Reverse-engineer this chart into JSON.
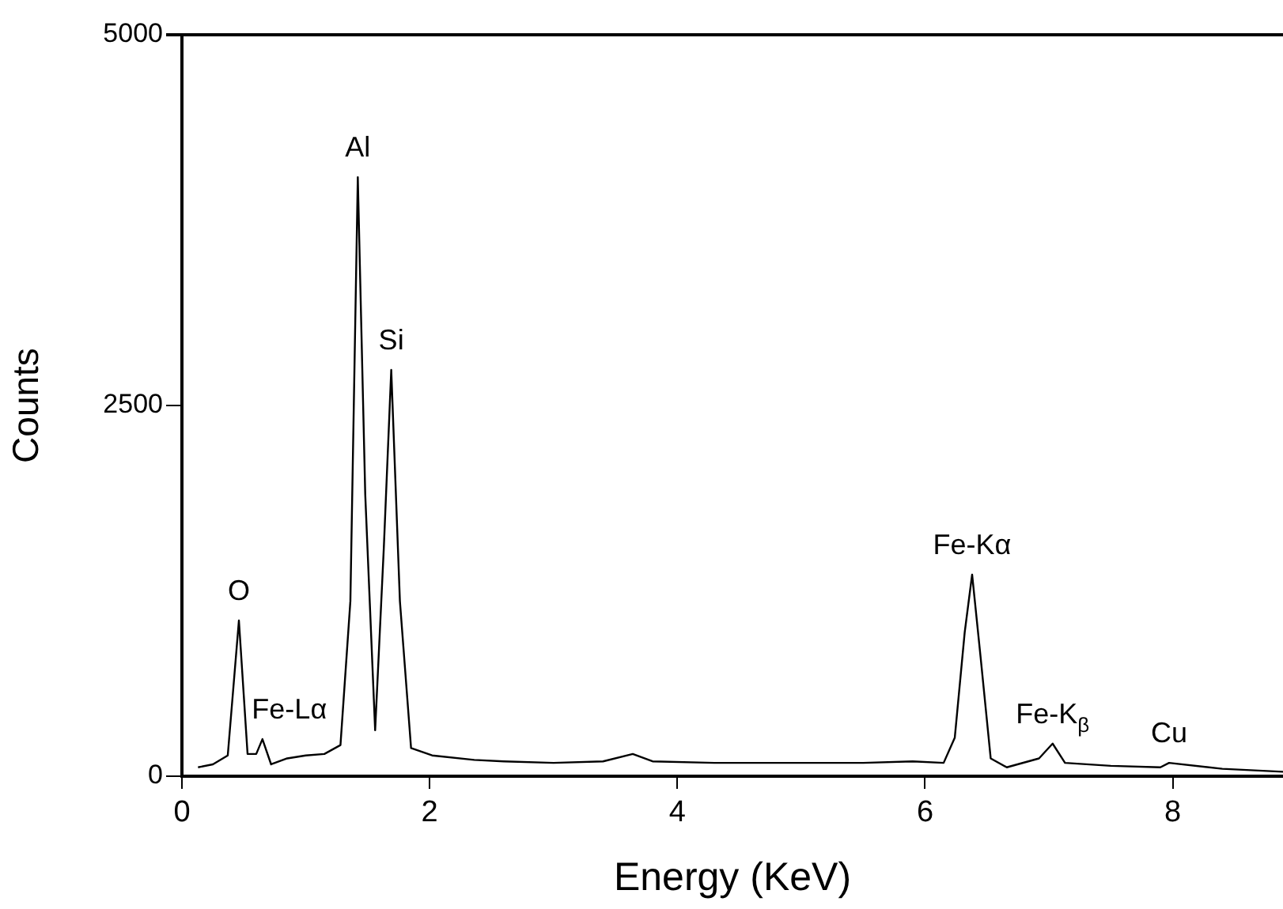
{
  "chart_data": {
    "type": "line",
    "xlabel": "Energy (KeV)",
    "ylabel": "Counts",
    "xlim": [
      0,
      8.89
    ],
    "ylim": [
      0,
      5000
    ],
    "xticks": [
      0,
      2,
      4,
      6,
      8
    ],
    "yticks": [
      0,
      2500,
      5000
    ],
    "grid": false,
    "legend": false,
    "marker": "none",
    "line_style": "solid",
    "series": [
      {
        "color": "#000000",
        "x": [
          0.13,
          0.25,
          0.37,
          0.46,
          0.53,
          0.6,
          0.65,
          0.72,
          0.85,
          1.0,
          1.15,
          1.28,
          1.36,
          1.42,
          1.48,
          1.56,
          1.63,
          1.69,
          1.76,
          1.85,
          2.02,
          2.36,
          2.6,
          3.0,
          3.4,
          3.64,
          3.8,
          4.3,
          4.92,
          5.5,
          5.9,
          6.15,
          6.24,
          6.32,
          6.38,
          6.45,
          6.53,
          6.66,
          6.92,
          7.03,
          7.13,
          7.5,
          7.9,
          7.97,
          8.4,
          8.89
        ],
        "values": [
          60,
          80,
          140,
          1050,
          150,
          150,
          250,
          80,
          120,
          140,
          150,
          210,
          1180,
          4040,
          1900,
          310,
          1540,
          2740,
          1180,
          190,
          140,
          110,
          100,
          90,
          100,
          150,
          100,
          90,
          90,
          90,
          100,
          90,
          260,
          970,
          1360,
          790,
          120,
          60,
          120,
          220,
          90,
          70,
          60,
          90,
          50,
          30
        ]
      }
    ],
    "annotations": [
      {
        "text": "O",
        "x": 0.46,
        "y": 1050
      },
      {
        "text": "Fe-Lα",
        "x": 0.65,
        "y": 250
      },
      {
        "text": "Al",
        "x": 1.42,
        "y": 4040
      },
      {
        "text": "Si",
        "x": 1.69,
        "y": 2740
      },
      {
        "text": "Fe-Kα",
        "x": 6.38,
        "y": 1360
      },
      {
        "text": "Fe-K$_{β}$",
        "x": 7.03,
        "y": 220
      },
      {
        "text": "Cu",
        "x": 7.97,
        "y": 90
      }
    ]
  }
}
